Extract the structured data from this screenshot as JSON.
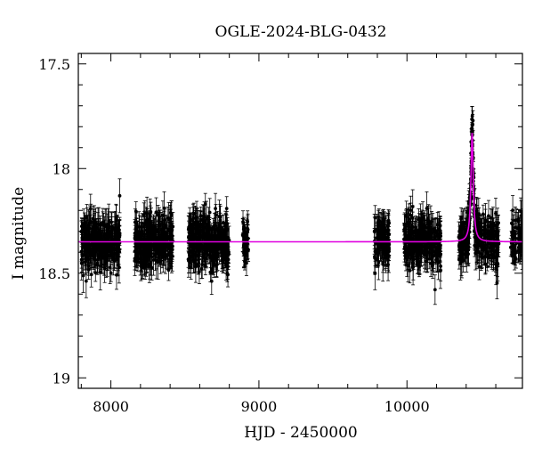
{
  "chart_data": {
    "type": "scatter",
    "title": "OGLE-2024-BLG-0432",
    "xlabel": "HJD - 2450000",
    "ylabel": "I magnitude",
    "xlim": [
      7780,
      10780
    ],
    "ylim": [
      19.05,
      17.45
    ],
    "y_inverted": true,
    "grid": false,
    "x_ticks": [
      8000,
      9000,
      10000
    ],
    "x_tick_labels": [
      "8000",
      "9000",
      "10000"
    ],
    "y_ticks": [
      17.5,
      18,
      18.5,
      19
    ],
    "y_tick_labels": [
      "17.5",
      "18",
      "18.5",
      "19"
    ],
    "series": [
      {
        "kind": "data",
        "color": "#000000",
        "baseline_mag": 18.35,
        "scatter_mag": 0.06,
        "error_bar_mag": 0.06,
        "seasons": [
          {
            "start": 7800,
            "end": 8060,
            "n": 300
          },
          {
            "start": 8160,
            "end": 8420,
            "n": 300
          },
          {
            "start": 8520,
            "end": 8800,
            "n": 320
          },
          {
            "start": 8890,
            "end": 8930,
            "n": 40
          },
          {
            "start": 9780,
            "end": 9880,
            "n": 110
          },
          {
            "start": 9980,
            "end": 10230,
            "n": 260
          },
          {
            "start": 10350,
            "end": 10620,
            "n": 280
          },
          {
            "start": 10700,
            "end": 10780,
            "n": 60
          }
        ]
      },
      {
        "kind": "model",
        "color": "#e000e0",
        "baseline_mag": 18.35,
        "peak_time": 10440,
        "peak_mag": 17.83,
        "timescale_days": 12
      }
    ]
  }
}
